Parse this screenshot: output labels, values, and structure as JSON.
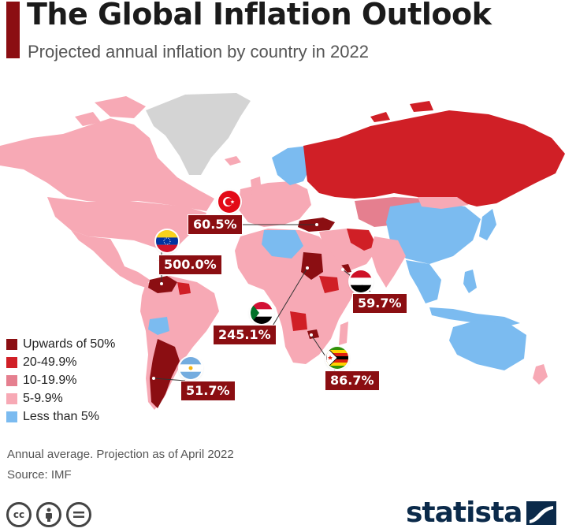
{
  "header": {
    "title": "The Global Inflation Outlook",
    "subtitle": "Projected annual inflation by country in 2022"
  },
  "colors": {
    "accent": "#8b0e12",
    "upwards_of_50": "#8b0e12",
    "range_20_49": "#d01f26",
    "range_10_19": "#e57f8f",
    "range_5_9": "#f7a9b5",
    "less_than_5": "#7bbbf0",
    "no_data": "#d4d4d4"
  },
  "legend": {
    "items": [
      {
        "label": "Upwards of 50%",
        "color": "#8b0e12"
      },
      {
        "label": "20-49.9%",
        "color": "#d01f26"
      },
      {
        "label": "10-19.9%",
        "color": "#e57f8f"
      },
      {
        "label": "5-9.9%",
        "color": "#f7a9b5"
      },
      {
        "label": "Less than 5%",
        "color": "#7bbbf0"
      }
    ]
  },
  "callouts": {
    "turkey": {
      "value": "60.5%",
      "flag": "turkey-flag-icon"
    },
    "venezuela": {
      "value": "500.0%",
      "flag": "venezuela-flag-icon"
    },
    "sudan": {
      "value": "245.1%",
      "flag": "sudan-flag-icon"
    },
    "yemen": {
      "value": "59.7%",
      "flag": "yemen-flag-icon"
    },
    "zimbabwe": {
      "value": "86.7%",
      "flag": "zimbabwe-flag-icon"
    },
    "argentina": {
      "value": "51.7%",
      "flag": "argentina-flag-icon"
    }
  },
  "footer": {
    "note": "Annual average. Projection as of April 2022",
    "source": "Source: IMF",
    "license_icons": [
      "cc-icon",
      "attribution-icon",
      "no-derivatives-icon"
    ],
    "brand": "statista"
  }
}
